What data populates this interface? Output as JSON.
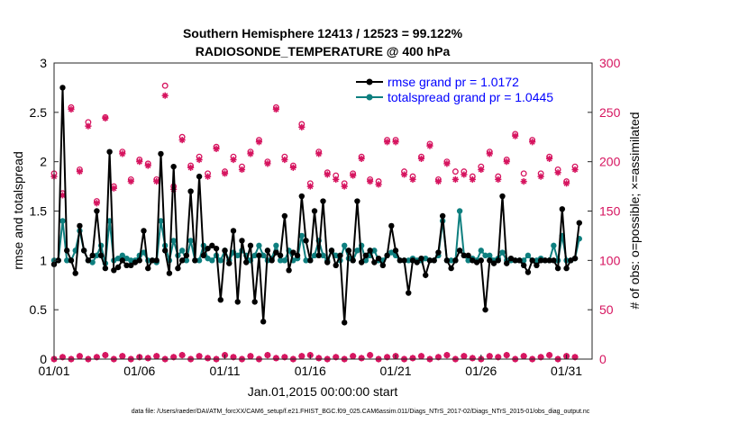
{
  "chart_data": {
    "type": "line",
    "title": "Southern Hemisphere 12413 / 12523 = 99.122%",
    "subtitle": "RADIOSONDE_TEMPERATURE @ 400 hPa",
    "xlabel": "Jan.01,2015 00:00:00 start",
    "ylabel": "rmse and totalspread",
    "ylabel_right": "# of obs: o=possible; ×=assimilated",
    "footer": "data file: /Users/raeder/DAI/ATM_forcXX/CAM6_setup/f.e21.FHIST_BGC.f09_025.CAM6assim.011/Diags_NTrS_2017-02/Diags_NTrS_2015-01/obs_diag_output.nc",
    "x_ticks": [
      "01/01",
      "01/06",
      "01/11",
      "01/16",
      "01/21",
      "01/26",
      "01/31"
    ],
    "x_tick_days": [
      1,
      6,
      11,
      16,
      21,
      26,
      31
    ],
    "xlim": [
      1,
      32.5
    ],
    "ylim": [
      0,
      3
    ],
    "ylim_right": [
      0,
      300
    ],
    "y_ticks": [
      "0",
      "0.5",
      "1",
      "1.5",
      "2",
      "2.5",
      "3"
    ],
    "y_ticks_right": [
      "0",
      "50",
      "100",
      "150",
      "200",
      "250",
      "300"
    ],
    "colors": {
      "rmse": "#000000",
      "spread": "#0e7f7f",
      "obs": "#d6145f",
      "legend_text": "#0000ff"
    },
    "legend": {
      "position": "top-right",
      "rmse": "rmse grand pr = 1.0172",
      "spread": "totalspread grand pr = 1.0445"
    },
    "x_days": [
      1.0,
      1.25,
      1.5,
      1.75,
      2.0,
      2.25,
      2.5,
      2.75,
      3.0,
      3.25,
      3.5,
      3.75,
      4.0,
      4.25,
      4.5,
      4.75,
      5.0,
      5.25,
      5.5,
      5.75,
      6.0,
      6.25,
      6.5,
      6.75,
      7.0,
      7.25,
      7.5,
      7.75,
      8.0,
      8.25,
      8.5,
      8.75,
      9.0,
      9.25,
      9.5,
      9.75,
      10.0,
      10.25,
      10.5,
      10.75,
      11.0,
      11.25,
      11.5,
      11.75,
      12.0,
      12.25,
      12.5,
      12.75,
      13.0,
      13.25,
      13.5,
      13.75,
      14.0,
      14.25,
      14.5,
      14.75,
      15.0,
      15.25,
      15.5,
      15.75,
      16.0,
      16.25,
      16.5,
      16.75,
      17.0,
      17.25,
      17.5,
      17.75,
      18.0,
      18.25,
      18.5,
      18.75,
      19.0,
      19.25,
      19.5,
      19.75,
      20.0,
      20.25,
      20.5,
      20.75,
      21.0,
      21.25,
      21.5,
      21.75,
      22.0,
      22.25,
      22.5,
      22.75,
      23.0,
      23.25,
      23.5,
      23.75,
      24.0,
      24.25,
      24.5,
      24.75,
      25.0,
      25.25,
      25.5,
      25.75,
      26.0,
      26.25,
      26.5,
      26.75,
      27.0,
      27.25,
      27.5,
      27.75,
      28.0,
      28.25,
      28.5,
      28.75,
      29.0,
      29.25,
      29.5,
      29.75,
      30.0,
      30.25,
      30.5,
      30.75,
      31.0,
      31.25,
      31.5,
      31.75
    ],
    "series": [
      {
        "name": "rmse",
        "values": [
          0.96,
          1.0,
          2.75,
          1.1,
          1.0,
          0.87,
          1.35,
          1.1,
          1.0,
          1.05,
          1.5,
          1.05,
          0.92,
          2.1,
          0.9,
          0.93,
          1.0,
          0.95,
          0.95,
          0.98,
          1.0,
          1.3,
          0.92,
          1.0,
          1.0,
          2.08,
          1.1,
          0.87,
          1.95,
          0.92,
          1.0,
          1.05,
          1.7,
          1.0,
          1.85,
          1.05,
          1.12,
          1.15,
          1.12,
          0.6,
          1.1,
          0.97,
          1.3,
          0.58,
          1.2,
          0.98,
          1.15,
          0.58,
          1.05,
          0.38,
          1.1,
          1.0,
          1.08,
          1.05,
          1.45,
          0.9,
          1.08,
          1.05,
          1.65,
          1.2,
          1.0,
          1.5,
          1.05,
          1.6,
          0.98,
          1.1,
          0.95,
          1.05,
          0.37,
          1.1,
          1.0,
          1.6,
          0.98,
          1.05,
          1.1,
          0.98,
          1.02,
          0.95,
          1.05,
          1.35,
          1.1,
          1.0,
          1.0,
          0.67,
          1.0,
          0.98,
          1.02,
          0.85,
          1.0,
          1.0,
          1.08,
          1.45,
          1.0,
          0.92,
          1.0,
          1.1,
          1.05,
          1.05,
          1.0,
          0.98,
          1.0,
          0.5,
          1.0,
          0.97,
          1.0,
          1.65,
          0.97,
          1.02,
          1.0,
          1.0,
          0.95,
          0.88,
          1.0,
          0.95,
          1.0,
          1.0,
          1.0,
          1.0,
          0.92,
          1.52,
          0.92,
          1.0,
          1.02,
          1.38
        ],
        "marker": "filled-circle"
      },
      {
        "name": "totalspread",
        "values": [
          1.0,
          1.0,
          1.4,
          1.0,
          1.0,
          1.1,
          1.3,
          1.1,
          1.0,
          0.98,
          1.05,
          1.15,
          0.97,
          1.4,
          1.0,
          1.02,
          1.05,
          1.02,
          1.0,
          1.0,
          1.05,
          1.08,
          1.0,
          1.0,
          0.98,
          1.4,
          1.15,
          1.0,
          1.2,
          1.05,
          1.1,
          1.0,
          1.2,
          1.0,
          1.0,
          1.15,
          1.02,
          1.0,
          1.05,
          1.0,
          1.1,
          1.0,
          1.08,
          1.05,
          1.1,
          1.05,
          1.0,
          1.05,
          1.15,
          1.05,
          1.0,
          1.02,
          1.15,
          1.0,
          1.0,
          1.1,
          1.0,
          1.02,
          1.25,
          1.0,
          1.0,
          1.05,
          1.2,
          1.05,
          1.0,
          1.1,
          1.05,
          1.0,
          1.15,
          1.02,
          1.0,
          1.1,
          1.15,
          1.0,
          1.05,
          1.1,
          1.0,
          1.0,
          1.05,
          1.08,
          1.05,
          1.0,
          1.0,
          1.0,
          1.02,
          1.0,
          1.0,
          1.02,
          1.0,
          1.0,
          1.05,
          1.4,
          1.0,
          1.0,
          1.0,
          1.5,
          1.05,
          1.0,
          1.02,
          1.0,
          1.1,
          1.05,
          1.05,
          1.0,
          1.02,
          1.08,
          1.0,
          1.0,
          1.0,
          1.0,
          1.0,
          1.05,
          1.0,
          1.0,
          1.02,
          1.0,
          1.0,
          1.15,
          1.0,
          1.25,
          1.0,
          1.0,
          1.02,
          1.22
        ],
        "marker": "filled-circle"
      },
      {
        "name": "possible",
        "x": [
          1.0,
          1.5,
          2.0,
          2.5,
          3.0,
          3.5,
          4.0,
          4.5,
          5.0,
          5.5,
          6.0,
          6.5,
          7.0,
          7.5,
          8.0,
          8.5,
          9.0,
          9.5,
          10.0,
          10.5,
          11.0,
          11.5,
          12.0,
          12.5,
          13.0,
          13.5,
          14.0,
          14.5,
          15.0,
          15.5,
          16.0,
          16.5,
          17.0,
          17.5,
          18.0,
          18.5,
          19.0,
          19.5,
          20.0,
          20.5,
          21.0,
          21.5,
          22.0,
          22.5,
          23.0,
          23.5,
          24.0,
          24.5,
          25.0,
          25.5,
          26.0,
          26.5,
          27.0,
          27.5,
          28.0,
          28.5,
          29.0,
          29.5,
          30.0,
          30.5,
          31.0,
          31.5
        ],
        "values": [
          188,
          168,
          255,
          192,
          240,
          160,
          245,
          175,
          210,
          182,
          202,
          198,
          182,
          277,
          175,
          225,
          196,
          205,
          188,
          215,
          190,
          205,
          195,
          210,
          222,
          200,
          255,
          205,
          196,
          238,
          178,
          210,
          189,
          186,
          178,
          188,
          205,
          182,
          180,
          222,
          222,
          190,
          185,
          205,
          218,
          182,
          200,
          190,
          190,
          185,
          195,
          210,
          185,
          202,
          228,
          188,
          222,
          188,
          205,
          192,
          180,
          195
        ],
        "marker": "open-circle"
      },
      {
        "name": "assimilated",
        "x": [
          1.0,
          1.5,
          2.0,
          2.5,
          3.0,
          3.5,
          4.0,
          4.5,
          5.0,
          5.5,
          6.0,
          6.5,
          7.0,
          7.5,
          8.0,
          8.5,
          9.0,
          9.5,
          10.0,
          10.5,
          11.0,
          11.5,
          12.0,
          12.5,
          13.0,
          13.5,
          14.0,
          14.5,
          15.0,
          15.5,
          16.0,
          16.5,
          17.0,
          17.5,
          18.0,
          18.5,
          19.0,
          19.5,
          20.0,
          20.5,
          21.0,
          21.5,
          22.0,
          22.5,
          23.0,
          23.5,
          24.0,
          24.5,
          25.0,
          25.5,
          26.0,
          26.5,
          27.0,
          27.5,
          28.0,
          28.5,
          29.0,
          29.5,
          30.0,
          30.5,
          31.0,
          31.5
        ],
        "values": [
          185,
          166,
          253,
          190,
          236,
          158,
          244,
          173,
          208,
          180,
          200,
          196,
          180,
          267,
          172,
          222,
          194,
          202,
          185,
          213,
          188,
          202,
          192,
          208,
          220,
          198,
          253,
          202,
          194,
          235,
          175,
          208,
          187,
          182,
          175,
          186,
          203,
          180,
          177,
          220,
          220,
          187,
          182,
          203,
          216,
          180,
          198,
          182,
          187,
          182,
          192,
          208,
          182,
          200,
          226,
          180,
          220,
          185,
          203,
          189,
          178,
          192
        ],
        "marker": "asterisk"
      },
      {
        "name": "zero_possible",
        "x": [
          1.0,
          1.5,
          2.0,
          2.5,
          3.0,
          3.5,
          4.0,
          4.5,
          5.0,
          5.5,
          6.0,
          6.5,
          7.0,
          7.5,
          8.0,
          8.5,
          9.0,
          9.5,
          10.0,
          10.5,
          11.0,
          11.5,
          12.0,
          12.5,
          13.0,
          13.5,
          14.0,
          14.5,
          15.0,
          15.5,
          16.0,
          16.5,
          17.0,
          17.5,
          18.0,
          18.5,
          19.0,
          19.5,
          20.0,
          20.5,
          21.0,
          21.5,
          22.0,
          22.5,
          23.0,
          23.5,
          24.0,
          24.5,
          25.0,
          25.5,
          26.0,
          26.5,
          27.0,
          27.5,
          28.0,
          28.5,
          29.0,
          29.5,
          30.0,
          30.5,
          31.0,
          31.5
        ],
        "values": [
          0,
          2,
          0,
          3,
          0,
          2,
          4,
          0,
          3,
          0,
          2,
          1,
          3,
          0,
          2,
          4,
          0,
          3,
          1,
          0,
          4,
          2,
          0,
          3,
          0,
          4,
          1,
          2,
          0,
          3,
          4,
          1,
          0,
          2,
          0,
          3,
          1,
          4,
          0,
          2,
          3,
          0,
          1,
          3,
          0,
          2,
          4,
          0,
          3,
          1,
          0,
          3,
          2,
          4,
          0,
          3,
          0,
          2,
          4,
          0,
          3,
          2
        ]
      }
    ]
  }
}
